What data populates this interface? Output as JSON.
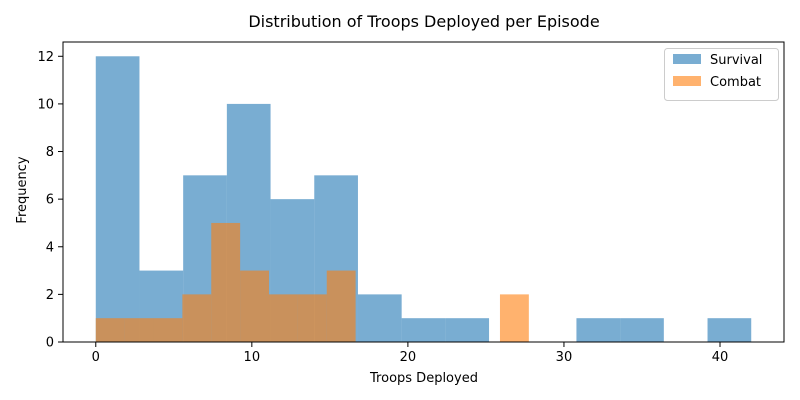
{
  "chart_data": {
    "type": "histogram",
    "title": "Distribution of Troops Deployed per Episode",
    "xlabel": "Troops Deployed",
    "ylabel": "Frequency",
    "xlim": [
      -2.1,
      44.1
    ],
    "ylim": [
      0,
      12.6
    ],
    "xticks": [
      0,
      10,
      20,
      30,
      40
    ],
    "yticks": [
      0,
      2,
      4,
      6,
      8,
      10,
      12
    ],
    "grid": false,
    "legend_position": "top-right",
    "alpha": 0.6,
    "series": [
      {
        "name": "Survival",
        "color": "#1f77b4",
        "bins": [
          [
            0,
            2.8,
            12
          ],
          [
            2.8,
            5.6,
            3
          ],
          [
            5.6,
            8.4,
            7
          ],
          [
            8.4,
            11.2,
            10
          ],
          [
            11.2,
            14.0,
            6
          ],
          [
            14.0,
            16.8,
            7
          ],
          [
            16.8,
            19.6,
            2
          ],
          [
            19.6,
            22.4,
            1
          ],
          [
            22.4,
            25.2,
            1
          ],
          [
            25.2,
            28.0,
            0
          ],
          [
            28.0,
            30.8,
            0
          ],
          [
            30.8,
            33.6,
            1
          ],
          [
            33.6,
            36.4,
            1
          ],
          [
            36.4,
            39.2,
            0
          ],
          [
            39.2,
            42.0,
            1
          ]
        ]
      },
      {
        "name": "Combat",
        "color": "#ff7f0e",
        "bins": [
          [
            0,
            1.85,
            1
          ],
          [
            1.85,
            3.7,
            1
          ],
          [
            3.7,
            5.55,
            1
          ],
          [
            5.55,
            7.4,
            2
          ],
          [
            7.4,
            9.25,
            5
          ],
          [
            9.25,
            11.1,
            3
          ],
          [
            11.1,
            12.95,
            2
          ],
          [
            12.95,
            14.8,
            2
          ],
          [
            14.8,
            16.65,
            3
          ],
          [
            16.65,
            18.5,
            0
          ],
          [
            18.5,
            20.35,
            0
          ],
          [
            20.35,
            22.2,
            0
          ],
          [
            22.2,
            24.05,
            0
          ],
          [
            24.05,
            25.9,
            0
          ],
          [
            25.9,
            27.75,
            2
          ]
        ]
      }
    ]
  }
}
